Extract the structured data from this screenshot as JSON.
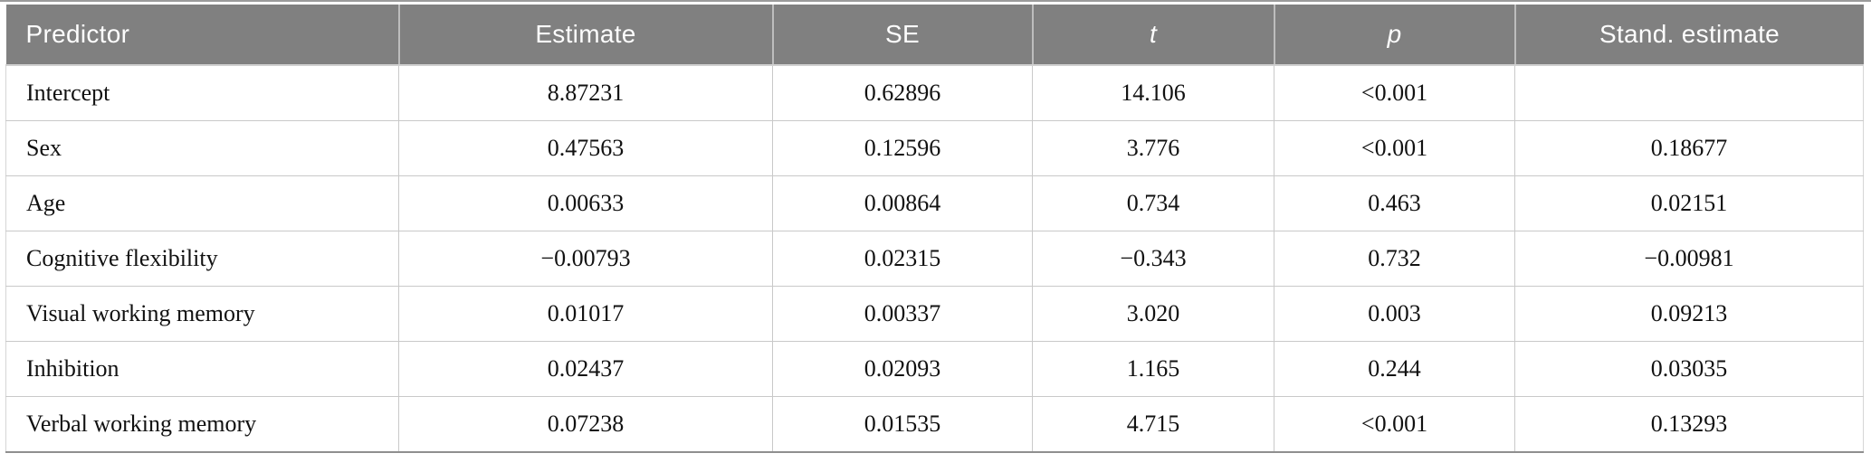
{
  "table": {
    "columns": [
      {
        "label": "Predictor"
      },
      {
        "label": "Estimate"
      },
      {
        "label": "SE"
      },
      {
        "label": "t"
      },
      {
        "label": "p"
      },
      {
        "label": "Stand. estimate"
      }
    ],
    "rows": [
      {
        "cells": [
          "Intercept",
          "8.87231",
          "0.62896",
          "14.106",
          "<0.001",
          ""
        ]
      },
      {
        "cells": [
          "Sex",
          "0.47563",
          "0.12596",
          "3.776",
          "<0.001",
          "0.18677"
        ]
      },
      {
        "cells": [
          "Age",
          "0.00633",
          "0.00864",
          "0.734",
          "0.463",
          "0.02151"
        ]
      },
      {
        "cells": [
          "Cognitive flexibility",
          "−0.00793",
          "0.02315",
          "−0.343",
          "0.732",
          "−0.00981"
        ]
      },
      {
        "cells": [
          "Visual working memory",
          "0.01017",
          "0.00337",
          "3.020",
          "0.003",
          "0.09213"
        ]
      },
      {
        "cells": [
          "Inhibition",
          "0.02437",
          "0.02093",
          "1.165",
          "0.244",
          "0.03035"
        ]
      },
      {
        "cells": [
          "Verbal working memory",
          "0.07238",
          "0.01535",
          "4.715",
          "<0.001",
          "0.13293"
        ]
      }
    ]
  },
  "colors": {
    "header_background": "#808080",
    "header_text": "#fdfdfd",
    "grid_line": "#c9c9c9",
    "header_divider": "#bdbdbd",
    "bottom_border": "#8f8f8f",
    "top_rule": "#9b9b9b",
    "body_text": "#111111"
  }
}
